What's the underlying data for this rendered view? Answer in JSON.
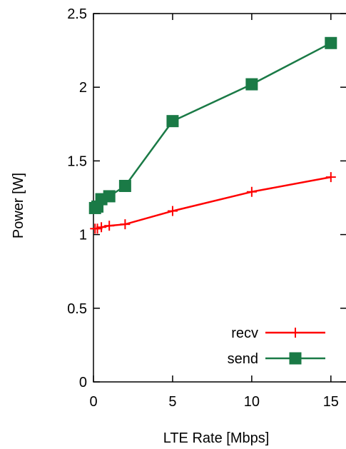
{
  "chart_data": {
    "type": "line",
    "xlabel": "LTE Rate [Mbps]",
    "ylabel": "Power [W]",
    "xlim": [
      0,
      16
    ],
    "ylim": [
      0,
      2.5
    ],
    "x_ticks": [
      0,
      5,
      10,
      15
    ],
    "y_ticks": [
      0,
      0.5,
      1,
      1.5,
      2,
      2.5
    ],
    "x_tick_labels": [
      "0",
      "5",
      "10",
      "15"
    ],
    "y_tick_labels": [
      "0",
      "0.5",
      "1",
      "1.5",
      "2",
      "2.5"
    ],
    "grid": false,
    "legend_position": "bottom-right",
    "series": [
      {
        "name": "recv",
        "color": "#ff0000",
        "marker": "plus",
        "x": [
          0.1,
          0.25,
          0.5,
          1,
          2,
          5,
          10,
          15
        ],
        "y": [
          1.04,
          1.04,
          1.05,
          1.06,
          1.07,
          1.16,
          1.29,
          1.39
        ]
      },
      {
        "name": "send",
        "color": "#1a7a46",
        "marker": "square",
        "x": [
          0.1,
          0.25,
          0.5,
          1,
          2,
          5,
          10,
          15
        ],
        "y": [
          1.18,
          1.19,
          1.24,
          1.26,
          1.33,
          1.77,
          2.02,
          2.3
        ]
      }
    ]
  }
}
